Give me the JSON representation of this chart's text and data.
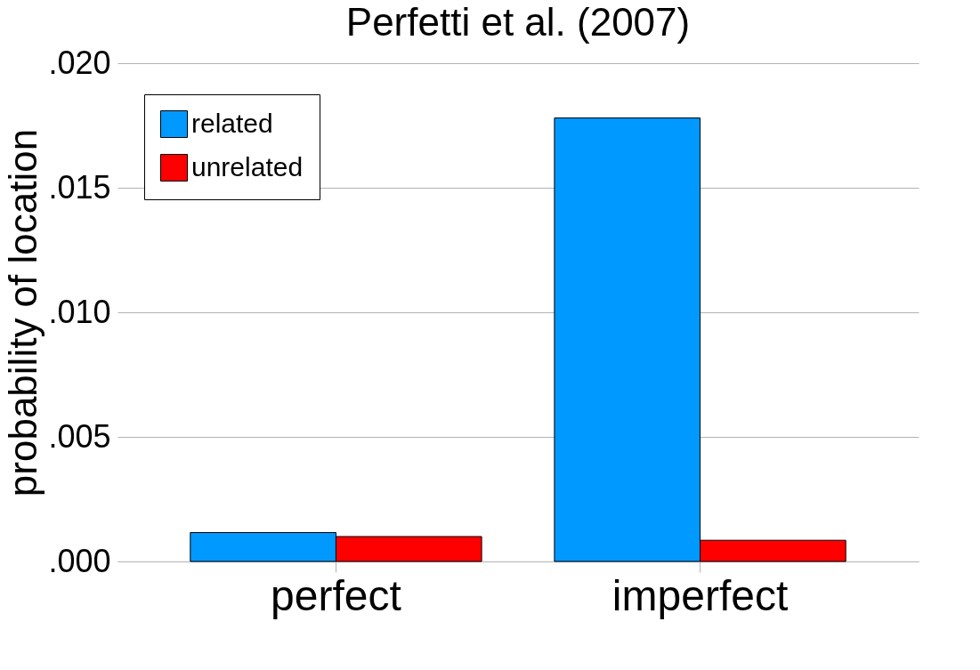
{
  "chart_data": {
    "type": "bar",
    "title": "Perfetti et al. (2007)",
    "ylabel": "probability of location",
    "categories": [
      "perfect",
      "imperfect"
    ],
    "series": [
      {
        "name": "related",
        "color": "#0099ff",
        "values": [
          0.00116,
          0.0178
        ]
      },
      {
        "name": "unrelated",
        "color": "#ff0000",
        "values": [
          0.001,
          0.00085
        ]
      }
    ],
    "ylim": [
      0,
      0.02
    ],
    "yticks": [
      {
        "value": 0,
        "label": ".000"
      },
      {
        "value": 0.005,
        "label": ".005"
      },
      {
        "value": 0.01,
        "label": ".010"
      },
      {
        "value": 0.015,
        "label": ".015"
      },
      {
        "value": 0.02,
        "label": ".020"
      }
    ],
    "grid": "y",
    "legend": "top left"
  }
}
